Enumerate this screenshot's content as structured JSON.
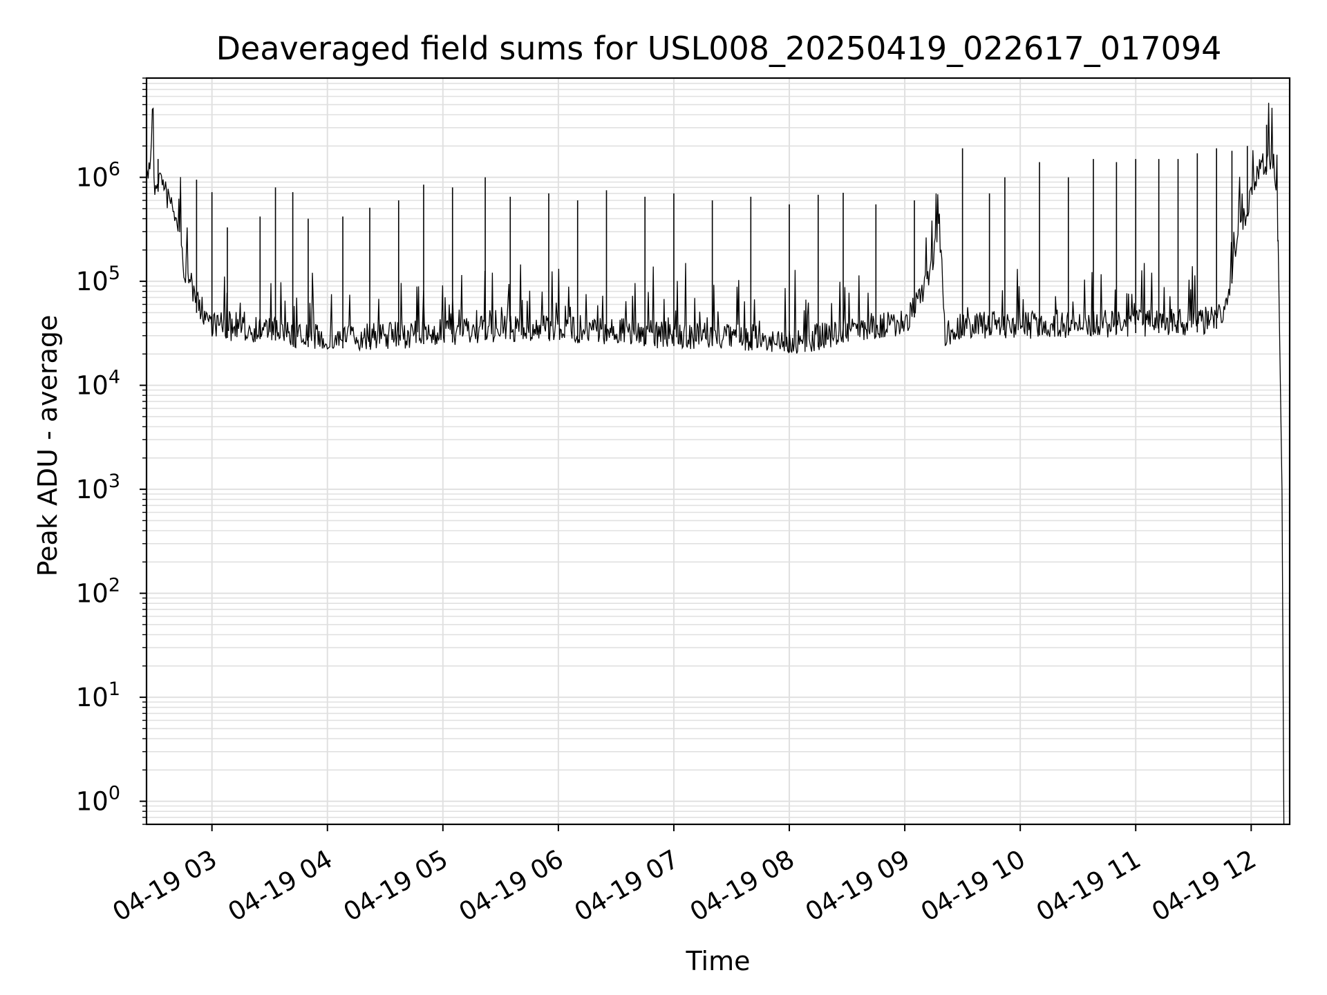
{
  "chart_data": {
    "type": "line",
    "title": "Deaveraged field sums for USL008_20250419_022617_017094",
    "xlabel": "Time",
    "ylabel": "Peak ADU - average",
    "yscale": "log",
    "ylim": [
      0.6,
      9000000
    ],
    "xlim": [
      "2025-04-19 02:26",
      "2025-04-19 12:20"
    ],
    "grid": true,
    "line_color": "#000000",
    "grid_color": "#e0e0e0",
    "x_ticks": [
      {
        "t": "2025-04-19 03:00",
        "label": "04-19 03"
      },
      {
        "t": "2025-04-19 04:00",
        "label": "04-19 04"
      },
      {
        "t": "2025-04-19 05:00",
        "label": "04-19 05"
      },
      {
        "t": "2025-04-19 06:00",
        "label": "04-19 06"
      },
      {
        "t": "2025-04-19 07:00",
        "label": "04-19 07"
      },
      {
        "t": "2025-04-19 08:00",
        "label": "04-19 08"
      },
      {
        "t": "2025-04-19 09:00",
        "label": "04-19 09"
      },
      {
        "t": "2025-04-19 10:00",
        "label": "04-19 10"
      },
      {
        "t": "2025-04-19 11:00",
        "label": "04-19 11"
      },
      {
        "t": "2025-04-19 12:00",
        "label": "04-19 12"
      }
    ],
    "y_ticks": [
      {
        "value": 1,
        "base": "10",
        "exp": "0"
      },
      {
        "value": 10,
        "base": "10",
        "exp": "1"
      },
      {
        "value": 100,
        "base": "10",
        "exp": "2"
      },
      {
        "value": 1000,
        "base": "10",
        "exp": "3"
      },
      {
        "value": 10000,
        "base": "10",
        "exp": "4"
      },
      {
        "value": 100000,
        "base": "10",
        "exp": "5"
      },
      {
        "value": 1000000,
        "base": "10",
        "exp": "6"
      }
    ],
    "series": [
      {
        "points": [
          [
            "2025-04-19 02:26",
            900000
          ],
          [
            "2025-04-19 02:28",
            1500000
          ],
          [
            "2025-04-19 02:29",
            4300000
          ],
          [
            "2025-04-19 02:30",
            800000
          ],
          [
            "2025-04-19 02:33",
            1000000
          ],
          [
            "2025-04-19 02:36",
            700000
          ],
          [
            "2025-04-19 02:40",
            500000
          ],
          [
            "2025-04-19 02:45",
            150000
          ],
          [
            "2025-04-19 02:50",
            70000
          ],
          [
            "2025-04-19 03:00",
            40000
          ],
          [
            "2025-04-19 03:10",
            35000
          ],
          [
            "2025-04-19 03:30",
            35000
          ],
          [
            "2025-04-19 03:45",
            30000
          ],
          [
            "2025-04-19 04:00",
            28000
          ],
          [
            "2025-04-19 04:30",
            30000
          ],
          [
            "2025-04-19 05:00",
            32000
          ],
          [
            "2025-04-19 05:30",
            35000
          ],
          [
            "2025-04-19 06:00",
            35000
          ],
          [
            "2025-04-19 06:30",
            33000
          ],
          [
            "2025-04-19 07:00",
            30000
          ],
          [
            "2025-04-19 07:30",
            30000
          ],
          [
            "2025-04-19 08:00",
            26000
          ],
          [
            "2025-04-19 08:30",
            33000
          ],
          [
            "2025-04-19 09:00",
            40000
          ],
          [
            "2025-04-19 09:10",
            80000
          ],
          [
            "2025-04-19 09:18",
            300000
          ],
          [
            "2025-04-19 09:21",
            30000
          ],
          [
            "2025-04-19 09:30",
            38000
          ],
          [
            "2025-04-19 10:00",
            38000
          ],
          [
            "2025-04-19 10:30",
            38000
          ],
          [
            "2025-04-19 11:00",
            40000
          ],
          [
            "2025-04-19 11:30",
            40000
          ],
          [
            "2025-04-19 11:45",
            45000
          ],
          [
            "2025-04-19 11:50",
            120000
          ],
          [
            "2025-04-19 11:55",
            350000
          ],
          [
            "2025-04-19 12:00",
            700000
          ],
          [
            "2025-04-19 12:05",
            1200000
          ],
          [
            "2025-04-19 12:10",
            1600000
          ],
          [
            "2025-04-19 12:12",
            1200000
          ],
          [
            "2025-04-19 12:14",
            250000
          ],
          [
            "2025-04-19 12:16",
            1000
          ],
          [
            "2025-04-19 12:17",
            0.6
          ]
        ],
        "spikes": [
          [
            "2025-04-19 02:32",
            1500000
          ],
          [
            "2025-04-19 02:52",
            950000
          ],
          [
            "2025-04-19 03:00",
            720000
          ],
          [
            "2025-04-19 03:08",
            330000
          ],
          [
            "2025-04-19 03:25",
            420000
          ],
          [
            "2025-04-19 03:33",
            800000
          ],
          [
            "2025-04-19 03:42",
            720000
          ],
          [
            "2025-04-19 03:50",
            400000
          ],
          [
            "2025-04-19 04:08",
            420000
          ],
          [
            "2025-04-19 04:22",
            510000
          ],
          [
            "2025-04-19 04:37",
            600000
          ],
          [
            "2025-04-19 04:50",
            850000
          ],
          [
            "2025-04-19 05:05",
            800000
          ],
          [
            "2025-04-19 05:22",
            1000000
          ],
          [
            "2025-04-19 05:35",
            650000
          ],
          [
            "2025-04-19 05:55",
            700000
          ],
          [
            "2025-04-19 06:10",
            600000
          ],
          [
            "2025-04-19 06:25",
            750000
          ],
          [
            "2025-04-19 06:45",
            650000
          ],
          [
            "2025-04-19 07:00",
            700000
          ],
          [
            "2025-04-19 07:20",
            600000
          ],
          [
            "2025-04-19 07:40",
            650000
          ],
          [
            "2025-04-19 08:00",
            550000
          ],
          [
            "2025-04-19 08:15",
            680000
          ],
          [
            "2025-04-19 08:28",
            710000
          ],
          [
            "2025-04-19 08:45",
            550000
          ],
          [
            "2025-04-19 09:05",
            600000
          ],
          [
            "2025-04-19 09:30",
            1900000
          ],
          [
            "2025-04-19 09:44",
            700000
          ],
          [
            "2025-04-19 09:52",
            1000000
          ],
          [
            "2025-04-19 10:10",
            1400000
          ],
          [
            "2025-04-19 10:25",
            1000000
          ],
          [
            "2025-04-19 10:38",
            1500000
          ],
          [
            "2025-04-19 10:50",
            1400000
          ],
          [
            "2025-04-19 11:00",
            1500000
          ],
          [
            "2025-04-19 11:12",
            1500000
          ],
          [
            "2025-04-19 11:22",
            1500000
          ],
          [
            "2025-04-19 11:32",
            1700000
          ],
          [
            "2025-04-19 11:42",
            1900000
          ],
          [
            "2025-04-19 11:50",
            1800000
          ],
          [
            "2025-04-19 11:58",
            2000000
          ],
          [
            "2025-04-19 12:08",
            3200000
          ]
        ]
      }
    ]
  }
}
